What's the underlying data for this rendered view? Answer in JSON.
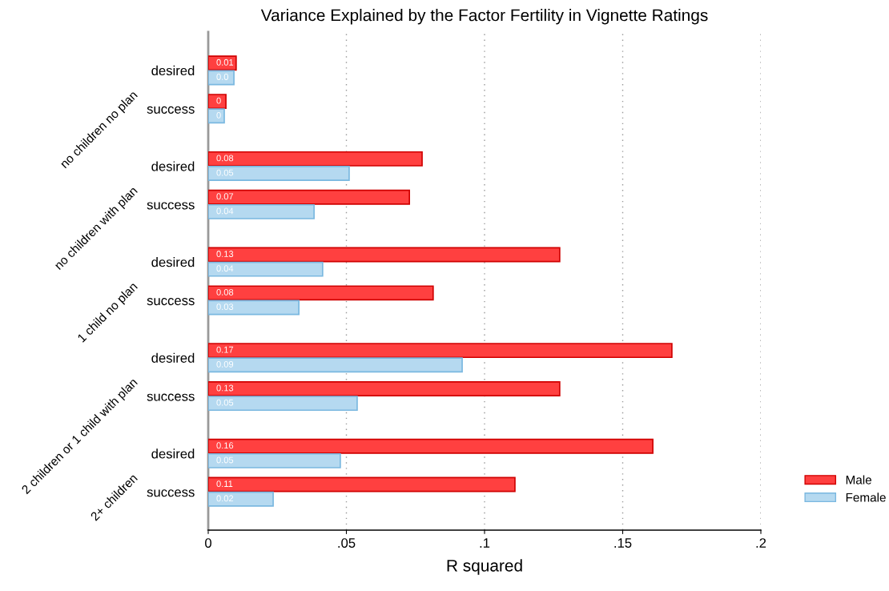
{
  "chart_data": {
    "type": "bar",
    "orientation": "horizontal",
    "title": "Variance Explained by the Factor Fertility in Vignette Ratings",
    "xlabel": "R squared",
    "categories": [
      "desired",
      "success",
      "desired",
      "success",
      "desired",
      "success",
      "desired",
      "success",
      "desired",
      "success"
    ],
    "annotations": [
      "no children no plan",
      "no children with plan",
      "1 child no plan",
      "2 children or 1 child with plan",
      "2+ children"
    ],
    "series": [
      {
        "name": "Male",
        "color": "#ff4040",
        "values": [
          0.0101,
          0.0064,
          0.0774,
          0.0728,
          0.1272,
          0.0814,
          0.1678,
          0.1272,
          0.1609,
          0.111
        ],
        "value_labels": [
          "0.01",
          "0",
          "0.08",
          "0.07",
          "0.13",
          "0.08",
          "0.17",
          "0.13",
          "0.16",
          "0.11"
        ]
      },
      {
        "name": "Female",
        "color": "#b5d9f0",
        "values": [
          0.0093,
          0.0058,
          0.051,
          0.0383,
          0.0414,
          0.0328,
          0.0919,
          0.0539,
          0.0478,
          0.0235
        ],
        "value_labels": [
          "0.0",
          "0",
          "0.05",
          "0.04",
          "0.04",
          "0.03",
          "0.09",
          "0.05",
          "0.05",
          "0.02"
        ]
      }
    ],
    "xlim": [
      0,
      0.2
    ],
    "xticks": [
      0,
      {
        "value": 0.05,
        "label": ".05"
      },
      {
        "value": 0.1,
        "label": ".1"
      },
      {
        "value": 0.15,
        "label": ".15"
      },
      {
        "value": 0.2,
        "label": ".2"
      }
    ],
    "grid": "x",
    "legend": "right"
  }
}
